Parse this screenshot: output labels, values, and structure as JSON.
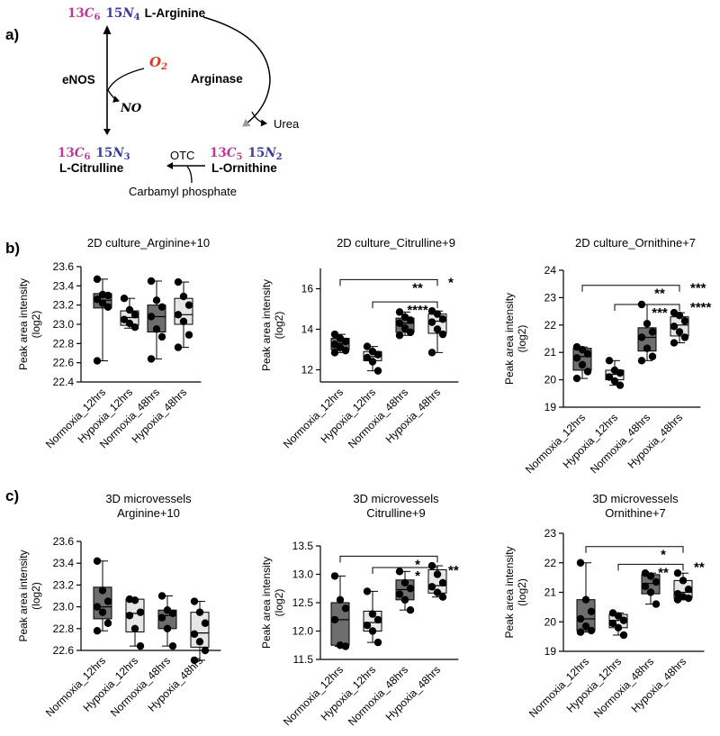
{
  "panel_labels": {
    "a": "a)",
    "b": "b)",
    "c": "c)"
  },
  "pathway": {
    "arginine": {
      "label": "L-Arginine",
      "c_mass": "13",
      "c_sym": "C",
      "c_sub": "6",
      "n_mass": "15",
      "n_sym": "N",
      "n_sub": "4"
    },
    "citrulline": {
      "label": "L-Citrulline",
      "c_mass": "13",
      "c_sym": "C",
      "c_sub": "6",
      "n_mass": "15",
      "n_sym": "N",
      "n_sub": "3"
    },
    "ornithine": {
      "label": "L-Ornithine",
      "c_mass": "13",
      "c_sym": "C",
      "c_sub": "5",
      "n_mass": "15",
      "n_sym": "N",
      "n_sub": "2"
    },
    "o2_sym": "O",
    "o2_sub": "2",
    "no": "NO",
    "enos": "eNOS",
    "arginase": "Arginase",
    "urea": "Urea",
    "otc": "OTC",
    "carbamyl": "Carbamyl phosphate",
    "colors": {
      "carbon": "#c0399a",
      "nitrogen": "#3c3c9a",
      "oxygen": "#e03a1e",
      "arrow": "#000000",
      "arrow_tip": "#999999"
    }
  },
  "style": {
    "box_dark": "#6e6e6e",
    "box_light": "#e6e6e6",
    "dot": "#000000"
  },
  "chart_data": [
    {
      "type": "box",
      "title_lines": [
        "2D culture_Arginine+10"
      ],
      "ylabel_lines": [
        "Peak area intensity",
        "(log2)"
      ],
      "categories": [
        "Normoxia_12hrs",
        "Hypoxia_12hrs",
        "Normoxia_48hrs",
        "Hypoxia_48hrs"
      ],
      "ylim": [
        22.4,
        23.6
      ],
      "yticks": [
        "22.4",
        "22.6",
        "22.8",
        "23.0",
        "23.2",
        "23.4",
        "23.6"
      ],
      "boxes": [
        {
          "min": 22.62,
          "q1": 23.17,
          "median": 23.25,
          "q3": 23.32,
          "max": 23.47,
          "fill": "dark"
        },
        {
          "min": 22.96,
          "q1": 22.99,
          "median": 23.07,
          "q3": 23.14,
          "max": 23.27,
          "fill": "light"
        },
        {
          "min": 22.64,
          "q1": 22.92,
          "median": 23.08,
          "q3": 23.2,
          "max": 23.45,
          "fill": "dark"
        },
        {
          "min": 22.76,
          "q1": 23.0,
          "median": 23.1,
          "q3": 23.27,
          "max": 23.44,
          "fill": "light"
        }
      ],
      "points": [
        [
          23.47,
          23.31,
          23.3,
          23.26,
          23.22,
          23.18,
          22.62
        ],
        [
          23.27,
          23.15,
          23.1,
          23.05,
          23.01,
          22.97
        ],
        [
          23.45,
          23.25,
          23.18,
          23.08,
          22.95,
          22.87,
          22.64
        ],
        [
          23.44,
          23.29,
          23.2,
          23.1,
          23.03,
          22.89,
          22.76
        ]
      ],
      "sig": []
    },
    {
      "type": "box",
      "title_lines": [
        "2D culture_Citrulline+9"
      ],
      "ylabel_lines": [
        "Peak area intensity",
        "(log2)"
      ],
      "categories": [
        "Normoxia_12hrs",
        "Hypoxia_12hrs",
        "Normoxia_48hrs",
        "Hypoxia_48hrs"
      ],
      "ylim": [
        11.4,
        17.0
      ],
      "yticks": [
        "12",
        "14",
        "16"
      ],
      "boxes": [
        {
          "min": 12.85,
          "q1": 13.0,
          "median": 13.3,
          "q3": 13.55,
          "max": 13.75,
          "fill": "dark"
        },
        {
          "min": 11.95,
          "q1": 12.45,
          "median": 12.65,
          "q3": 12.9,
          "max": 13.15,
          "fill": "light"
        },
        {
          "min": 13.7,
          "q1": 13.85,
          "median": 14.3,
          "q3": 14.55,
          "max": 14.85,
          "fill": "dark"
        },
        {
          "min": 12.85,
          "q1": 13.8,
          "median": 14.4,
          "q3": 14.75,
          "max": 14.9,
          "fill": "light"
        }
      ],
      "points": [
        [
          13.75,
          13.55,
          13.4,
          13.25,
          13.1,
          12.95,
          12.85
        ],
        [
          13.15,
          12.9,
          12.75,
          12.6,
          12.4,
          11.95
        ],
        [
          14.85,
          14.6,
          14.45,
          14.3,
          14.05,
          13.85,
          13.7
        ],
        [
          14.9,
          14.75,
          14.5,
          14.35,
          14.0,
          13.75,
          12.85
        ]
      ],
      "sig": [
        {
          "x1": 0,
          "x2": 3,
          "y": 16.45,
          "label": "**"
        },
        {
          "x1": 1,
          "x2": 3,
          "y": 15.35,
          "label": "****"
        },
        {
          "x1": 3,
          "x2": 3,
          "y": 16.45,
          "label": "*",
          "side": true
        }
      ]
    },
    {
      "type": "box",
      "title_lines": [
        "2D culture_Ornithine+7"
      ],
      "ylabel_lines": [
        "Peak area intensity",
        "(log2)"
      ],
      "categories": [
        "Normoxia_12hrs",
        "Hypoxia_12hrs",
        "Normoxia_48hrs",
        "Hypoxia_48hrs"
      ],
      "ylim": [
        19,
        24
      ],
      "yticks": [
        "19",
        "20",
        "21",
        "22",
        "23",
        "24"
      ],
      "boxes": [
        {
          "min": 20.05,
          "q1": 20.35,
          "median": 20.85,
          "q3": 21.15,
          "max": 21.2,
          "fill": "dark"
        },
        {
          "min": 19.8,
          "q1": 20.0,
          "median": 20.2,
          "q3": 20.35,
          "max": 20.7,
          "fill": "light"
        },
        {
          "min": 20.7,
          "q1": 21.05,
          "median": 21.55,
          "q3": 21.9,
          "max": 22.75,
          "fill": "dark"
        },
        {
          "min": 21.35,
          "q1": 21.6,
          "median": 22.0,
          "q3": 22.3,
          "max": 22.45,
          "fill": "light"
        }
      ],
      "points": [
        [
          21.2,
          21.1,
          20.95,
          20.8,
          20.55,
          20.3,
          20.05
        ],
        [
          20.7,
          20.35,
          20.25,
          20.1,
          19.95,
          19.8
        ],
        [
          22.75,
          22.05,
          21.75,
          21.55,
          21.15,
          20.85,
          20.7
        ],
        [
          22.45,
          22.35,
          22.15,
          21.95,
          21.75,
          21.55,
          21.35
        ]
      ],
      "sig": [
        {
          "x1": 0,
          "x2": 3,
          "y": 23.45,
          "label": "**"
        },
        {
          "x1": 1,
          "x2": 3,
          "y": 22.75,
          "label": "***"
        },
        {
          "x1": 3,
          "x2": 3,
          "y": 23.45,
          "label": "***",
          "side": true
        },
        {
          "x1": 3,
          "x2": 3,
          "y": 22.75,
          "label": "****",
          "side": true
        }
      ]
    },
    {
      "type": "box",
      "title_lines": [
        "3D microvessels",
        "Arginine+10"
      ],
      "ylabel_lines": [
        "Peak area intensity",
        "(log2)"
      ],
      "categories": [
        "Normoxia_12hrs",
        "Hypoxia_12hrs",
        "Normoxia_48hrs",
        "Hypoxia_48hrs"
      ],
      "ylim": [
        22.6,
        23.6
      ],
      "yticks": [
        "22.6",
        "22.8",
        "23.0",
        "23.2",
        "23.4",
        "23.6"
      ],
      "boxes": [
        {
          "min": 22.78,
          "q1": 22.89,
          "median": 23.0,
          "q3": 23.18,
          "max": 23.42,
          "fill": "dark"
        },
        {
          "min": 22.64,
          "q1": 22.77,
          "median": 22.94,
          "q3": 23.07,
          "max": 23.07,
          "fill": "light"
        },
        {
          "min": 22.64,
          "q1": 22.8,
          "median": 22.92,
          "q3": 22.97,
          "max": 23.1,
          "fill": "dark"
        },
        {
          "min": 22.51,
          "q1": 22.63,
          "median": 22.76,
          "q3": 22.95,
          "max": 23.05,
          "fill": "light"
        }
      ],
      "points": [
        [
          23.42,
          23.15,
          23.05,
          23.0,
          22.95,
          22.85,
          22.78
        ],
        [
          23.07,
          23.06,
          22.95,
          22.92,
          22.8,
          22.64
        ],
        [
          23.1,
          22.97,
          22.94,
          22.9,
          22.8,
          22.64
        ],
        [
          23.05,
          22.95,
          22.85,
          22.75,
          22.68,
          22.6,
          22.51
        ]
      ],
      "sig": []
    },
    {
      "type": "box",
      "title_lines": [
        "3D microvessels",
        "Citrulline+9"
      ],
      "ylabel_lines": [
        "Peak area intensity",
        "(log2)"
      ],
      "categories": [
        "Normoxia_12hrs",
        "Hypoxia_12hrs",
        "Normoxia_48hrs",
        "Hypoxia_48hrs"
      ],
      "ylim": [
        11.5,
        13.5
      ],
      "yticks": [
        "11.5",
        "12.0",
        "12.5",
        "13.0",
        "13.5"
      ],
      "boxes": [
        {
          "min": 11.73,
          "q1": 11.75,
          "median": 12.2,
          "q3": 12.5,
          "max": 12.97,
          "fill": "dark"
        },
        {
          "min": 11.8,
          "q1": 12.0,
          "median": 12.15,
          "q3": 12.35,
          "max": 12.7,
          "fill": "light"
        },
        {
          "min": 12.37,
          "q1": 12.55,
          "median": 12.73,
          "q3": 12.9,
          "max": 13.05,
          "fill": "dark"
        },
        {
          "min": 12.6,
          "q1": 12.67,
          "median": 12.8,
          "q3": 13.08,
          "max": 13.15,
          "fill": "light"
        }
      ],
      "points": [
        [
          12.97,
          12.55,
          12.4,
          12.2,
          11.75,
          11.73
        ],
        [
          12.7,
          12.3,
          12.2,
          12.1,
          12.0,
          11.8
        ],
        [
          13.05,
          12.85,
          12.75,
          12.65,
          12.55,
          12.37
        ],
        [
          13.15,
          13.0,
          12.85,
          12.78,
          12.68,
          12.6
        ]
      ],
      "sig": [
        {
          "x1": 0,
          "x2": 3,
          "y": 13.32,
          "label": "*"
        },
        {
          "x1": 1,
          "x2": 3,
          "y": 13.12,
          "label": "*"
        },
        {
          "x1": 3,
          "x2": 3,
          "y": 13.12,
          "label": "**",
          "side": true
        }
      ]
    },
    {
      "type": "box",
      "title_lines": [
        "3D microvessels",
        "Ornithine+7"
      ],
      "ylabel_lines": [
        "Peak area intensity",
        "(log2)"
      ],
      "categories": [
        "Normoxia_12hrs",
        "Hypoxia_12hrs",
        "Normoxia_48hrs",
        "Hypoxia_48hrs"
      ],
      "ylim": [
        19,
        23
      ],
      "yticks": [
        "19",
        "20",
        "21",
        "22",
        "23"
      ],
      "boxes": [
        {
          "min": 19.65,
          "q1": 19.7,
          "median": 20.1,
          "q3": 20.75,
          "max": 22.0,
          "fill": "dark"
        },
        {
          "min": 19.55,
          "q1": 19.8,
          "median": 20.05,
          "q3": 20.25,
          "max": 20.3,
          "fill": "light"
        },
        {
          "min": 20.6,
          "q1": 20.95,
          "median": 21.3,
          "q3": 21.6,
          "max": 21.65,
          "fill": "dark"
        },
        {
          "min": 20.75,
          "q1": 20.8,
          "median": 21.0,
          "q3": 21.4,
          "max": 21.65,
          "fill": "light"
        }
      ],
      "points": [
        [
          22.0,
          20.75,
          20.35,
          20.1,
          19.85,
          19.7,
          19.65
        ],
        [
          20.3,
          20.2,
          20.05,
          19.95,
          19.8,
          19.55
        ],
        [
          21.65,
          21.55,
          21.35,
          21.2,
          21.0,
          20.6
        ],
        [
          21.65,
          21.4,
          21.1,
          20.95,
          20.85,
          20.8,
          20.75
        ]
      ],
      "sig": [
        {
          "x1": 0,
          "x2": 3,
          "y": 22.55,
          "label": "*"
        },
        {
          "x1": 1,
          "x2": 3,
          "y": 21.95,
          "label": "**"
        },
        {
          "x1": 3,
          "x2": 3,
          "y": 21.95,
          "label": "**",
          "side": true
        }
      ]
    }
  ]
}
